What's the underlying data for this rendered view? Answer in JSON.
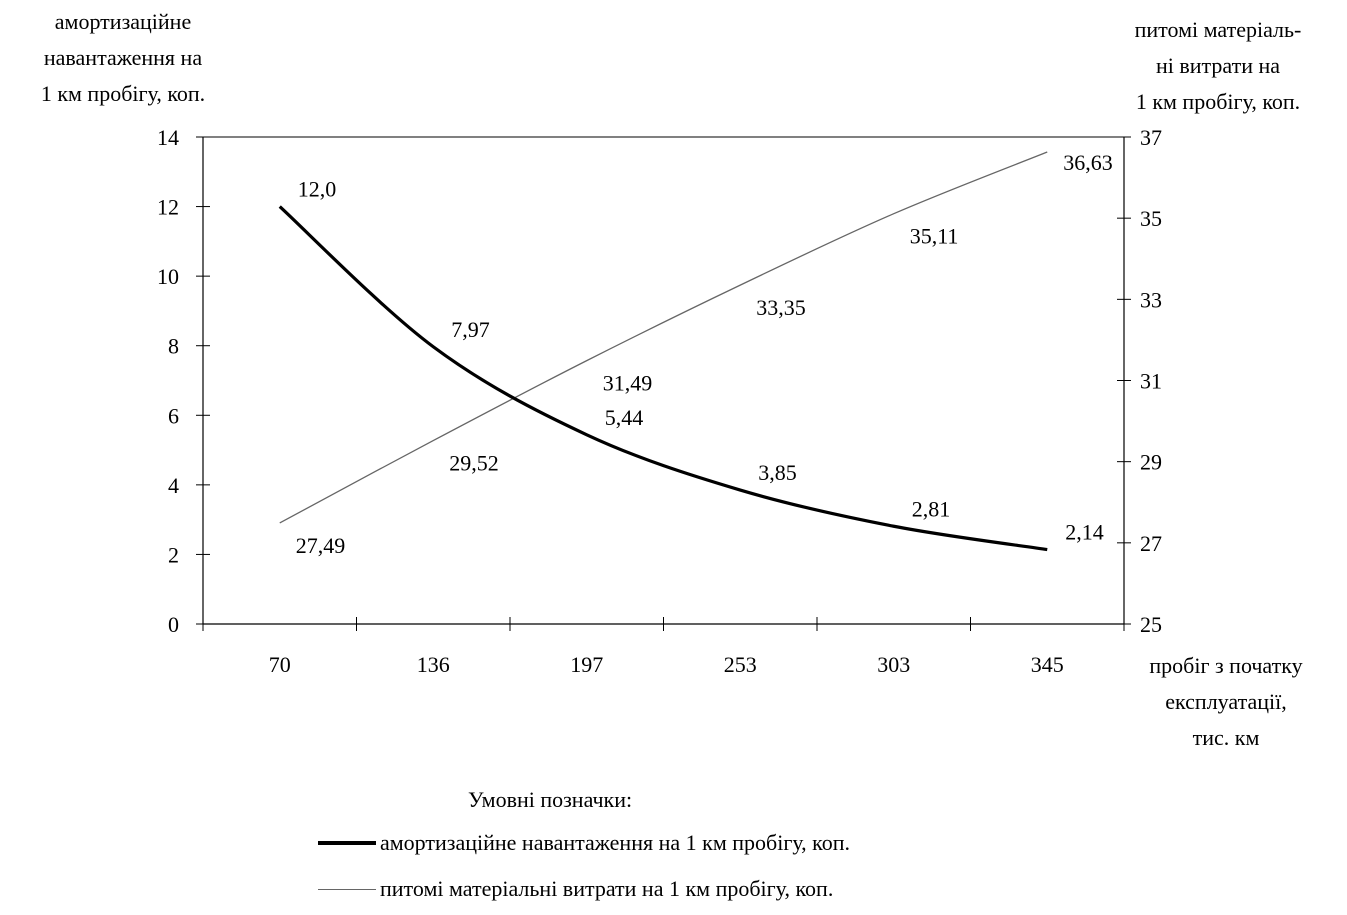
{
  "chart_data": {
    "type": "line",
    "categories": [
      "70",
      "136",
      "197",
      "253",
      "303",
      "345"
    ],
    "xlabel": "пробіг з початку експлуатації, тис. км",
    "ylabel_left": "амортизаційне навантаження на 1 км пробігу, коп.",
    "ylabel_right": "питомі матеріаль-ні витрати на 1 км пробігу, коп.",
    "ylim_left": [
      0,
      14
    ],
    "ylim_right": [
      25,
      37
    ],
    "yticks_left": [
      "0",
      "2",
      "4",
      "6",
      "8",
      "10",
      "12",
      "14"
    ],
    "yticks_right": [
      "25",
      "27",
      "29",
      "31",
      "33",
      "35",
      "37"
    ],
    "series": [
      {
        "name": "амортизаційне навантаження на 1 км пробігу, коп.",
        "axis": "left",
        "x": [
          70,
          136,
          197,
          253,
          303,
          345
        ],
        "values": [
          12.0,
          7.97,
          5.44,
          3.85,
          2.81,
          2.14
        ],
        "labels": [
          "12,0",
          "7,97",
          "5,44",
          "3,85",
          "2,81",
          "2,14"
        ],
        "color": "#000000"
      },
      {
        "name": "питомі матеріальні витрати на 1 км пробігу, коп.",
        "axis": "right",
        "x": [
          70,
          136,
          197,
          253,
          303,
          345
        ],
        "values": [
          27.49,
          29.52,
          31.49,
          33.35,
          35.11,
          36.63
        ],
        "labels": [
          "27,49",
          "29,52",
          "31,49",
          "33,35",
          "35,11",
          "36,63"
        ],
        "color": "#666666"
      }
    ],
    "grid": false
  },
  "labels": {
    "left_axis": [
      "амортизаційне",
      "навантаження на",
      "1 км пробігу, коп."
    ],
    "right_axis": [
      "питомі матеріаль-",
      "ні витрати на",
      "1 км пробігу, коп."
    ],
    "x_axis": [
      "пробіг з початку",
      "експлуатації,",
      "тис. км"
    ]
  },
  "legend": {
    "title": "Умовні позначки:",
    "items": [
      "амортизаційне навантаження на 1 км пробігу, коп.",
      "питомі матеріальні витрати на 1 км пробігу, коп."
    ]
  }
}
